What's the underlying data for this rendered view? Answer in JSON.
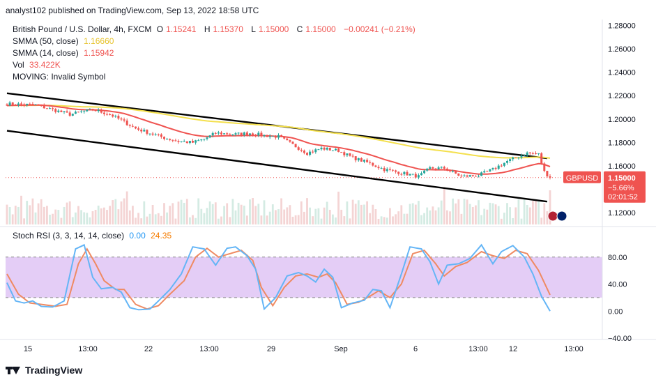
{
  "header": {
    "published": "analyst102 published on TradingView.com, Sep 13, 2022 18:58 UTC"
  },
  "legend": {
    "symbol": "British Pound / U.S. Dollar, 4h, FXCM",
    "o_label": "O",
    "o": "1.15241",
    "h_label": "H",
    "h": "1.15370",
    "l_label": "L",
    "l": "1.15000",
    "c_label": "C",
    "c": "1.15000",
    "change": "−0.00241 (−0.21%)",
    "smma50_label": "SMMA (50, close)",
    "smma50": "1.16660",
    "smma14_label": "SMMA (14, close)",
    "smma14": "1.15942",
    "vol_label": "Vol",
    "vol": "33.422K",
    "moving": "MOVING: Invalid Symbol",
    "stoch_label": "Stoch RSI (3, 3, 14, 14, close)",
    "stoch_k": "0.00",
    "stoch_d": "24.35"
  },
  "price_tag": {
    "symbol": "GBPUSD",
    "price": "1.15000",
    "change": "−5.66%",
    "countdown": "02:01:52"
  },
  "footer": {
    "brand": "TradingView"
  },
  "colors": {
    "up": "#26a69a",
    "down": "#ef5350",
    "smma50": "#f4e04d",
    "smma14": "#ef5350",
    "stoch_k": "#64b5f6",
    "stoch_d": "#ef8a62",
    "stoch_band": "#e1c8f5",
    "trendline": "#000000",
    "vol_up": "#d4ebe3",
    "vol_down": "#f4d4d4"
  },
  "chart_data": [
    {
      "type": "candlestick",
      "x_ticks": [
        "15",
        "13:00",
        "22",
        "13:00",
        "29",
        "13:00",
        "Sep",
        "6",
        "13:00",
        "12",
        "13:00"
      ],
      "y_ticks": [
        "1.28000",
        "1.26000",
        "1.24000",
        "1.22000",
        "1.20000",
        "1.18000",
        "1.16000",
        "1.12000"
      ],
      "ylim": [
        1.11,
        1.285
      ],
      "last_price": 1.15,
      "smma50_last": 1.1666,
      "smma14_last": 1.15942,
      "trendlines": [
        {
          "from_candle": 0,
          "from_value": 1.222,
          "to_candle": 189,
          "to_value": 1.1665
        },
        {
          "from_candle": 0,
          "from_value": 1.19,
          "to_candle": 189,
          "to_value": 1.1295
        }
      ],
      "anchors": [
        [
          0,
          1.213
        ],
        [
          10,
          1.212
        ],
        [
          22,
          1.204
        ],
        [
          30,
          1.208
        ],
        [
          36,
          1.204
        ],
        [
          40,
          1.199
        ],
        [
          45,
          1.192
        ],
        [
          55,
          1.184
        ],
        [
          60,
          1.181
        ],
        [
          65,
          1.18
        ],
        [
          69,
          1.183
        ],
        [
          73,
          1.188
        ],
        [
          80,
          1.187
        ],
        [
          85,
          1.188
        ],
        [
          90,
          1.186
        ],
        [
          95,
          1.185
        ],
        [
          100,
          1.178
        ],
        [
          105,
          1.171
        ],
        [
          110,
          1.175
        ],
        [
          116,
          1.173
        ],
        [
          121,
          1.167
        ],
        [
          126,
          1.163
        ],
        [
          132,
          1.157
        ],
        [
          138,
          1.154
        ],
        [
          144,
          1.151
        ],
        [
          148,
          1.158
        ],
        [
          153,
          1.158
        ],
        [
          159,
          1.151
        ],
        [
          165,
          1.152
        ],
        [
          170,
          1.157
        ],
        [
          175,
          1.164
        ],
        [
          182,
          1.171
        ],
        [
          186,
          1.17
        ],
        [
          188,
          1.155
        ],
        [
          190,
          1.15
        ]
      ]
    },
    {
      "type": "line",
      "title": "Stoch RSI (3, 3, 14, 14, close)",
      "y_ticks": [
        "80.00",
        "40.00",
        "0.00",
        "−40.00"
      ],
      "ylim": [
        -40,
        120
      ],
      "band": [
        20,
        80
      ],
      "k_last": 0.0,
      "d_last": 24.35,
      "k_anchors": [
        [
          0,
          42
        ],
        [
          3,
          15
        ],
        [
          6,
          12
        ],
        [
          9,
          15
        ],
        [
          12,
          7
        ],
        [
          16,
          6
        ],
        [
          20,
          15
        ],
        [
          24,
          92
        ],
        [
          27,
          98
        ],
        [
          30,
          50
        ],
        [
          33,
          33
        ],
        [
          37,
          35
        ],
        [
          40,
          28
        ],
        [
          43,
          5
        ],
        [
          46,
          2
        ],
        [
          50,
          3
        ],
        [
          53,
          15
        ],
        [
          57,
          32
        ],
        [
          61,
          55
        ],
        [
          65,
          95
        ],
        [
          69,
          92
        ],
        [
          73,
          68
        ],
        [
          77,
          93
        ],
        [
          80,
          95
        ],
        [
          84,
          82
        ],
        [
          87,
          62
        ],
        [
          90,
          3
        ],
        [
          94,
          20
        ],
        [
          98,
          52
        ],
        [
          102,
          57
        ],
        [
          105,
          52
        ],
        [
          108,
          43
        ],
        [
          111,
          62
        ],
        [
          114,
          50
        ],
        [
          117,
          5
        ],
        [
          121,
          12
        ],
        [
          125,
          16
        ],
        [
          128,
          32
        ],
        [
          131,
          30
        ],
        [
          134,
          5
        ],
        [
          138,
          55
        ],
        [
          141,
          95
        ],
        [
          145,
          92
        ],
        [
          148,
          73
        ],
        [
          151,
          40
        ],
        [
          154,
          68
        ],
        [
          158,
          70
        ],
        [
          162,
          78
        ],
        [
          166,
          98
        ],
        [
          170,
          70
        ],
        [
          173,
          88
        ],
        [
          177,
          97
        ],
        [
          181,
          80
        ],
        [
          184,
          55
        ],
        [
          187,
          22
        ],
        [
          190,
          0
        ]
      ],
      "d_anchors": [
        [
          0,
          55
        ],
        [
          4,
          25
        ],
        [
          8,
          12
        ],
        [
          12,
          10
        ],
        [
          17,
          7
        ],
        [
          21,
          10
        ],
        [
          25,
          70
        ],
        [
          28,
          92
        ],
        [
          31,
          70
        ],
        [
          34,
          45
        ],
        [
          38,
          32
        ],
        [
          41,
          32
        ],
        [
          45,
          10
        ],
        [
          49,
          3
        ],
        [
          53,
          8
        ],
        [
          57,
          25
        ],
        [
          62,
          45
        ],
        [
          66,
          80
        ],
        [
          70,
          93
        ],
        [
          74,
          80
        ],
        [
          78,
          85
        ],
        [
          82,
          90
        ],
        [
          86,
          75
        ],
        [
          89,
          35
        ],
        [
          93,
          8
        ],
        [
          97,
          35
        ],
        [
          101,
          52
        ],
        [
          105,
          55
        ],
        [
          109,
          50
        ],
        [
          112,
          55
        ],
        [
          115,
          42
        ],
        [
          119,
          10
        ],
        [
          123,
          13
        ],
        [
          127,
          22
        ],
        [
          130,
          30
        ],
        [
          134,
          20
        ],
        [
          138,
          40
        ],
        [
          142,
          85
        ],
        [
          146,
          90
        ],
        [
          150,
          70
        ],
        [
          153,
          52
        ],
        [
          157,
          66
        ],
        [
          161,
          72
        ],
        [
          166,
          88
        ],
        [
          170,
          82
        ],
        [
          174,
          78
        ],
        [
          178,
          90
        ],
        [
          182,
          85
        ],
        [
          186,
          60
        ],
        [
          190,
          24
        ]
      ]
    }
  ]
}
